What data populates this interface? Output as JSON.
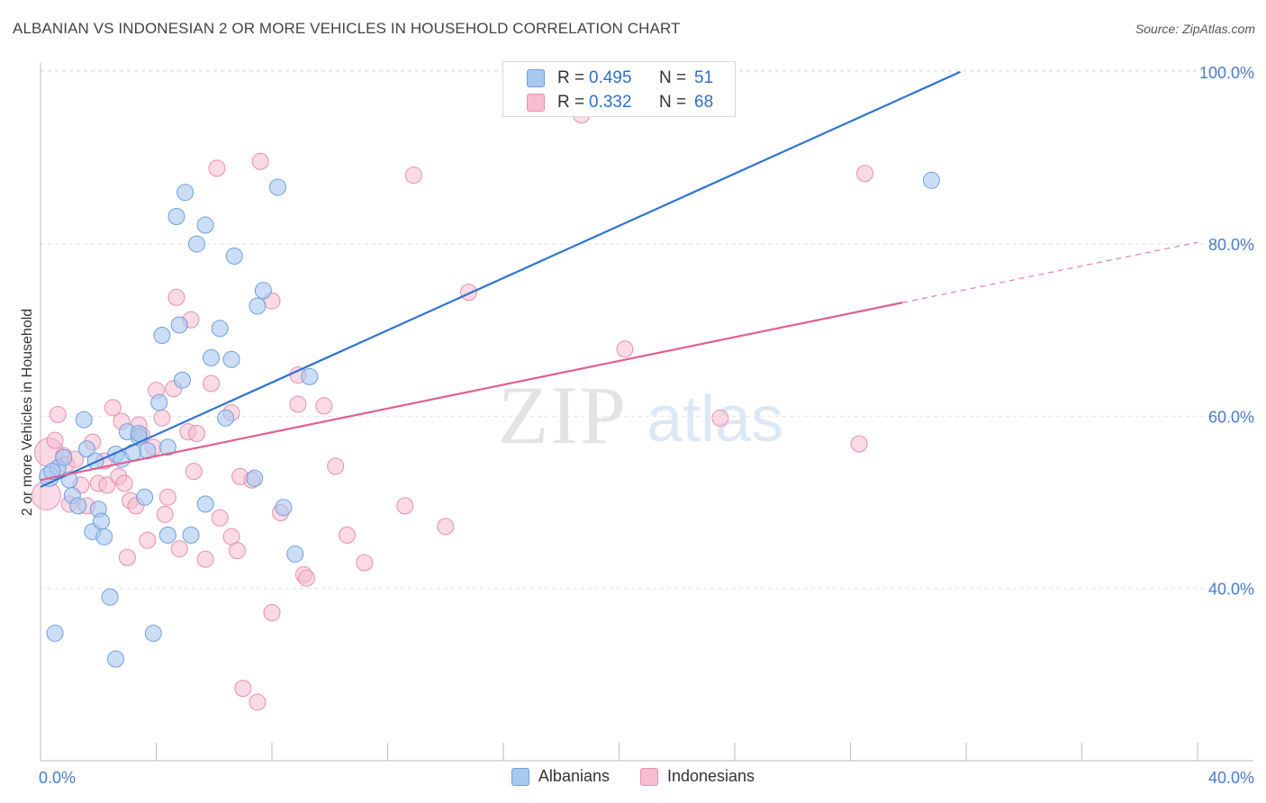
{
  "title": "ALBANIAN VS INDONESIAN 2 OR MORE VEHICLES IN HOUSEHOLD CORRELATION CHART",
  "source": "Source: ZipAtlas.com",
  "watermark": {
    "zip": "ZIP",
    "atlas": "atlas"
  },
  "stats": {
    "albanians": {
      "r_label": "R =",
      "r_value": "0.495",
      "n_label": "N =",
      "n_value": "51"
    },
    "indonesians": {
      "r_label": "R =",
      "r_value": "0.332",
      "n_label": "N =",
      "n_value": "68"
    }
  },
  "legend": {
    "albanians": "Albanians",
    "indonesians": "Indonesians"
  },
  "colors": {
    "albanians_fill": "#a9c8f0",
    "albanians_stroke": "#6f9fdc",
    "albanians_line": "#2f74d0",
    "indonesians_fill": "#f6bcd0",
    "indonesians_stroke": "#e88fb0",
    "indonesians_line": "#e0608f",
    "tick_label": "#4a7cc9",
    "grid": "#e2e2e2"
  },
  "chart_data": {
    "type": "scatter",
    "title": "ALBANIAN VS INDONESIAN 2 OR MORE VEHICLES IN HOUSEHOLD CORRELATION CHART",
    "xlabel": "",
    "ylabel": "2 or more Vehicles in Household",
    "xlim": [
      0,
      40
    ],
    "ylim": [
      20,
      102
    ],
    "x_tick_labels": [
      "0.0%",
      "40.0%"
    ],
    "y_ticks": [
      40,
      60,
      80,
      100
    ],
    "y_tick_labels": [
      "40.0%",
      "60.0%",
      "80.0%",
      "100.0%"
    ],
    "grid": true,
    "legend_position": "bottom-center",
    "series": [
      {
        "name": "Albanians",
        "r": 0.495,
        "n": 51,
        "trend": {
          "x0": 0,
          "y0": 51.8,
          "x1": 31.8,
          "y1": 100.0
        },
        "points": [
          {
            "x": 0.3,
            "y": 53.0
          },
          {
            "x": 0.5,
            "y": 34.8
          },
          {
            "x": 0.6,
            "y": 54.0
          },
          {
            "x": 0.8,
            "y": 55.2
          },
          {
            "x": 1.0,
            "y": 52.6
          },
          {
            "x": 1.1,
            "y": 50.8
          },
          {
            "x": 1.3,
            "y": 49.6
          },
          {
            "x": 1.5,
            "y": 59.6
          },
          {
            "x": 1.6,
            "y": 56.2
          },
          {
            "x": 1.8,
            "y": 46.6
          },
          {
            "x": 1.9,
            "y": 54.8
          },
          {
            "x": 2.0,
            "y": 49.2
          },
          {
            "x": 2.1,
            "y": 47.8
          },
          {
            "x": 2.2,
            "y": 46.0
          },
          {
            "x": 2.4,
            "y": 39.0
          },
          {
            "x": 2.6,
            "y": 31.8
          },
          {
            "x": 2.6,
            "y": 55.6
          },
          {
            "x": 2.8,
            "y": 55.0
          },
          {
            "x": 3.0,
            "y": 58.2
          },
          {
            "x": 3.2,
            "y": 55.8
          },
          {
            "x": 3.4,
            "y": 57.6
          },
          {
            "x": 3.6,
            "y": 50.6
          },
          {
            "x": 3.7,
            "y": 56.0
          },
          {
            "x": 3.9,
            "y": 34.8
          },
          {
            "x": 4.1,
            "y": 61.6
          },
          {
            "x": 4.4,
            "y": 46.2
          },
          {
            "x": 4.4,
            "y": 56.4
          },
          {
            "x": 4.7,
            "y": 83.2
          },
          {
            "x": 4.8,
            "y": 70.6
          },
          {
            "x": 4.9,
            "y": 64.2
          },
          {
            "x": 5.0,
            "y": 86.0
          },
          {
            "x": 5.2,
            "y": 46.2
          },
          {
            "x": 5.4,
            "y": 80.0
          },
          {
            "x": 5.7,
            "y": 82.2
          },
          {
            "x": 5.7,
            "y": 49.8
          },
          {
            "x": 5.9,
            "y": 66.8
          },
          {
            "x": 6.2,
            "y": 70.2
          },
          {
            "x": 6.4,
            "y": 59.8
          },
          {
            "x": 6.6,
            "y": 66.6
          },
          {
            "x": 6.7,
            "y": 78.6
          },
          {
            "x": 7.4,
            "y": 52.8
          },
          {
            "x": 7.5,
            "y": 72.8
          },
          {
            "x": 7.7,
            "y": 74.6
          },
          {
            "x": 8.2,
            "y": 86.6
          },
          {
            "x": 8.4,
            "y": 49.4
          },
          {
            "x": 8.8,
            "y": 44.0
          },
          {
            "x": 9.3,
            "y": 64.6
          },
          {
            "x": 30.8,
            "y": 87.4
          },
          {
            "x": 4.2,
            "y": 69.4
          },
          {
            "x": 3.4,
            "y": 58.0
          },
          {
            "x": 0.4,
            "y": 53.6
          }
        ]
      },
      {
        "name": "Indonesians",
        "r": 0.332,
        "n": 68,
        "trend": {
          "x0": 0,
          "y0": 52.6,
          "x1": 29.8,
          "y1": 73.2,
          "dashed_to": {
            "x": 40,
            "y": 80.2
          }
        },
        "points": [
          {
            "x": 0.2,
            "y": 50.8
          },
          {
            "x": 0.3,
            "y": 55.8
          },
          {
            "x": 0.5,
            "y": 57.2
          },
          {
            "x": 0.6,
            "y": 60.2
          },
          {
            "x": 0.8,
            "y": 55.4
          },
          {
            "x": 0.9,
            "y": 54.4
          },
          {
            "x": 1.0,
            "y": 49.8
          },
          {
            "x": 1.2,
            "y": 55.0
          },
          {
            "x": 1.4,
            "y": 52.0
          },
          {
            "x": 1.6,
            "y": 49.6
          },
          {
            "x": 1.8,
            "y": 57.0
          },
          {
            "x": 2.0,
            "y": 52.2
          },
          {
            "x": 2.2,
            "y": 54.8
          },
          {
            "x": 2.3,
            "y": 52.0
          },
          {
            "x": 2.5,
            "y": 61.0
          },
          {
            "x": 2.7,
            "y": 53.0
          },
          {
            "x": 2.8,
            "y": 59.4
          },
          {
            "x": 2.9,
            "y": 52.2
          },
          {
            "x": 3.0,
            "y": 43.6
          },
          {
            "x": 3.1,
            "y": 50.2
          },
          {
            "x": 3.3,
            "y": 49.6
          },
          {
            "x": 3.4,
            "y": 59.0
          },
          {
            "x": 3.5,
            "y": 57.8
          },
          {
            "x": 3.7,
            "y": 45.6
          },
          {
            "x": 3.9,
            "y": 56.4
          },
          {
            "x": 4.0,
            "y": 63.0
          },
          {
            "x": 4.2,
            "y": 59.8
          },
          {
            "x": 4.3,
            "y": 48.6
          },
          {
            "x": 4.4,
            "y": 50.6
          },
          {
            "x": 4.6,
            "y": 63.2
          },
          {
            "x": 4.7,
            "y": 73.8
          },
          {
            "x": 4.8,
            "y": 44.6
          },
          {
            "x": 5.1,
            "y": 58.2
          },
          {
            "x": 5.2,
            "y": 71.2
          },
          {
            "x": 5.3,
            "y": 53.6
          },
          {
            "x": 5.4,
            "y": 58.0
          },
          {
            "x": 5.7,
            "y": 43.4
          },
          {
            "x": 5.9,
            "y": 63.8
          },
          {
            "x": 6.1,
            "y": 88.8
          },
          {
            "x": 6.2,
            "y": 48.2
          },
          {
            "x": 6.6,
            "y": 60.4
          },
          {
            "x": 6.6,
            "y": 46.0
          },
          {
            "x": 6.8,
            "y": 44.4
          },
          {
            "x": 7.0,
            "y": 28.4
          },
          {
            "x": 7.3,
            "y": 52.6
          },
          {
            "x": 7.5,
            "y": 26.8
          },
          {
            "x": 7.6,
            "y": 89.6
          },
          {
            "x": 8.0,
            "y": 73.4
          },
          {
            "x": 8.3,
            "y": 48.8
          },
          {
            "x": 8.9,
            "y": 61.4
          },
          {
            "x": 8.9,
            "y": 64.8
          },
          {
            "x": 9.1,
            "y": 41.6
          },
          {
            "x": 9.2,
            "y": 41.2
          },
          {
            "x": 9.8,
            "y": 61.2
          },
          {
            "x": 10.2,
            "y": 54.2
          },
          {
            "x": 10.6,
            "y": 46.2
          },
          {
            "x": 11.2,
            "y": 43.0
          },
          {
            "x": 12.6,
            "y": 49.6
          },
          {
            "x": 12.9,
            "y": 88.0
          },
          {
            "x": 14.0,
            "y": 47.2
          },
          {
            "x": 14.8,
            "y": 74.4
          },
          {
            "x": 18.7,
            "y": 95.0
          },
          {
            "x": 20.2,
            "y": 67.8
          },
          {
            "x": 23.5,
            "y": 59.8
          },
          {
            "x": 28.3,
            "y": 56.8
          },
          {
            "x": 28.5,
            "y": 88.2
          },
          {
            "x": 8.0,
            "y": 37.2
          },
          {
            "x": 6.9,
            "y": 53.0
          }
        ]
      }
    ]
  }
}
